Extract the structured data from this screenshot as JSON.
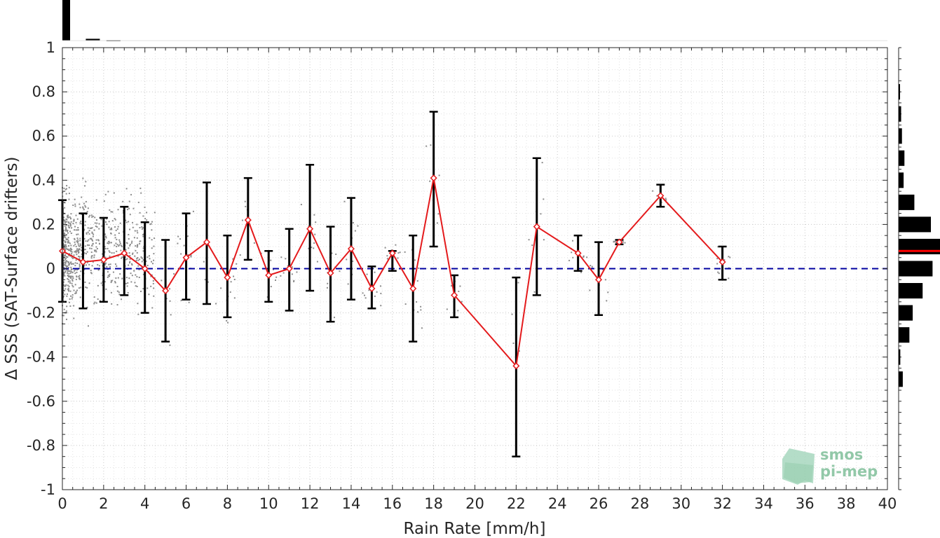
{
  "chart_data": {
    "type": "line",
    "title": "",
    "xlabel": "Rain Rate [mm/h]",
    "ylabel": "Δ SSS (SAT-Surface drifters)",
    "xlim": [
      0,
      40
    ],
    "ylim": [
      -1,
      1
    ],
    "xticks": [
      "0",
      "2",
      "4",
      "6",
      "8",
      "10",
      "12",
      "14",
      "16",
      "18",
      "20",
      "22",
      "24",
      "26",
      "28",
      "30",
      "32",
      "34",
      "36",
      "38",
      "40"
    ],
    "yticks": [
      "-1",
      "-0.8",
      "-0.6",
      "-0.4",
      "-0.2",
      "0",
      "0.2",
      "0.4",
      "0.6",
      "0.8",
      "1"
    ],
    "grid": true,
    "reference_line": {
      "y": 0,
      "style": "dashed",
      "color": "#0000a0"
    },
    "series": [
      {
        "color": "#e41a1c",
        "marker": "diamond",
        "x": [
          0,
          1,
          2,
          3,
          4,
          5,
          6,
          7,
          8,
          9,
          10,
          11,
          12,
          13,
          14,
          15,
          16,
          17,
          18,
          19,
          22,
          23,
          25,
          26,
          27,
          29,
          32
        ],
        "y": [
          0.08,
          0.03,
          0.04,
          0.07,
          0.0,
          -0.1,
          0.05,
          0.12,
          -0.04,
          0.22,
          -0.03,
          0.0,
          0.18,
          -0.02,
          0.09,
          -0.09,
          0.07,
          -0.09,
          0.41,
          -0.12,
          -0.44,
          0.19,
          0.07,
          -0.05,
          0.12,
          0.33,
          0.03
        ],
        "error_low": [
          -0.15,
          -0.18,
          -0.15,
          -0.12,
          -0.2,
          -0.33,
          -0.14,
          -0.16,
          -0.22,
          0.04,
          -0.15,
          -0.19,
          -0.1,
          -0.24,
          -0.14,
          -0.18,
          -0.01,
          -0.33,
          0.1,
          -0.22,
          -0.85,
          -0.12,
          -0.01,
          -0.21,
          0.11,
          0.28,
          -0.05
        ],
        "error_high": [
          0.31,
          0.25,
          0.23,
          0.28,
          0.21,
          0.13,
          0.25,
          0.39,
          0.15,
          0.41,
          0.08,
          0.18,
          0.47,
          0.19,
          0.32,
          0.01,
          0.08,
          0.15,
          0.71,
          -0.03,
          -0.04,
          0.5,
          0.15,
          0.12,
          0.13,
          0.38,
          0.1
        ]
      }
    ],
    "top_histogram": {
      "bins": [
        0,
        1,
        2,
        3,
        4,
        5
      ],
      "counts": [
        1000,
        45,
        12,
        5,
        3,
        2
      ]
    },
    "right_histogram": {
      "bin_centers": [
        0.8,
        0.7,
        0.6,
        0.5,
        0.4,
        0.3,
        0.2,
        0.1,
        0.0,
        -0.1,
        -0.2,
        -0.3,
        -0.4,
        -0.5
      ],
      "counts": [
        2,
        6,
        8,
        14,
        12,
        38,
        78,
        100,
        82,
        58,
        34,
        26,
        4,
        10
      ],
      "mean_line": 0.08,
      "mean_color": "#ff0000"
    }
  },
  "logo": {
    "line1": "smos",
    "line2": "pi-mep",
    "color": "#7fbf9a"
  }
}
